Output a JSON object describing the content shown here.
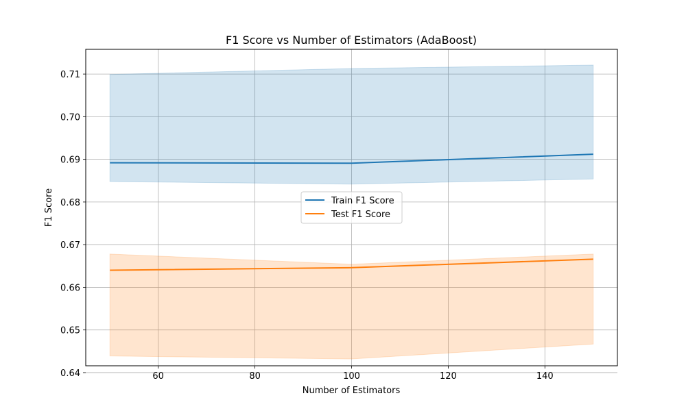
{
  "chart_data": {
    "type": "line",
    "title": "F1 Score vs Number of Estimators (AdaBoost)",
    "xlabel": "Number of Estimators",
    "ylabel": "F1 Score",
    "x": [
      50,
      100,
      150
    ],
    "xlim": [
      45,
      155
    ],
    "ylim": [
      0.6416,
      0.7158
    ],
    "xticks": [
      60,
      80,
      100,
      120,
      140
    ],
    "yticks": [
      0.64,
      0.65,
      0.66,
      0.67,
      0.68,
      0.69,
      0.7,
      0.71
    ],
    "grid": true,
    "legend_position": "center",
    "series": [
      {
        "name": "Train F1 Score",
        "color": "#1f77b4",
        "band_color": "#1f77b4",
        "values": [
          0.6892,
          0.6891,
          0.6912
        ],
        "lower": [
          0.6848,
          0.6842,
          0.6854
        ],
        "upper": [
          0.7099,
          0.7113,
          0.7121
        ]
      },
      {
        "name": "Test F1 Score",
        "color": "#ff7f0e",
        "band_color": "#ff7f0e",
        "values": [
          0.664,
          0.6646,
          0.6666
        ],
        "lower": [
          0.6439,
          0.6432,
          0.6467
        ],
        "upper": [
          0.6678,
          0.6654,
          0.6678
        ]
      }
    ]
  }
}
